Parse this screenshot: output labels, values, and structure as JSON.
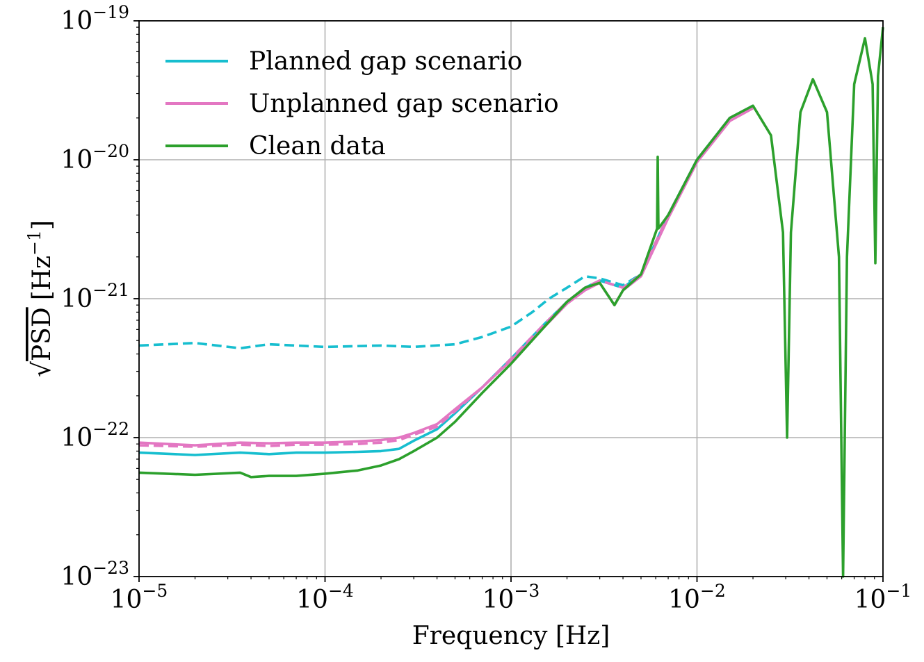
{
  "chart_data": {
    "type": "line",
    "title": "",
    "xlabel": "Frequency [Hz]",
    "ylabel_parts": {
      "radical": "√",
      "overbar_text": "PSD",
      "unit_text": "[Hz",
      "unit_exponent": "−1",
      "unit_close": "]"
    },
    "xscale": "log",
    "yscale": "log",
    "xlim": [
      1e-05,
      0.1
    ],
    "ylim": [
      1e-23,
      1e-19
    ],
    "grid": true,
    "legend_position": "top-left",
    "x_ticks": [
      {
        "value": 1e-05,
        "base": "10",
        "exponent": "−5"
      },
      {
        "value": 0.0001,
        "base": "10",
        "exponent": "−4"
      },
      {
        "value": 0.001,
        "base": "10",
        "exponent": "−3"
      },
      {
        "value": 0.01,
        "base": "10",
        "exponent": "−2"
      },
      {
        "value": 0.1,
        "base": "10",
        "exponent": "−1"
      }
    ],
    "y_ticks": [
      {
        "value": 1e-23,
        "base": "10",
        "exponent": "−23"
      },
      {
        "value": 1e-22,
        "base": "10",
        "exponent": "−22"
      },
      {
        "value": 1e-21,
        "base": "10",
        "exponent": "−21"
      },
      {
        "value": 1e-20,
        "base": "10",
        "exponent": "−20"
      },
      {
        "value": 1e-19,
        "base": "10",
        "exponent": "−19"
      }
    ],
    "legend": [
      {
        "label": "Planned gap scenario",
        "color": "#17becf"
      },
      {
        "label": "Unplanned gap scenario",
        "color": "#e377c2"
      },
      {
        "label": "Clean data",
        "color": "#2ca02c"
      }
    ],
    "series": [
      {
        "name": "Planned gap scenario (dashed)",
        "color": "#17becf",
        "style": "dashed",
        "x": [
          1e-05,
          2e-05,
          3.5e-05,
          5e-05,
          0.0001,
          0.0002,
          0.0003,
          0.0005,
          0.0007,
          0.001,
          0.0013,
          0.0016,
          0.002,
          0.0025,
          0.003,
          0.004,
          0.005,
          0.007,
          0.01,
          0.015,
          0.02
        ],
        "values": [
          4.6e-22,
          4.8e-22,
          4.4e-22,
          4.7e-22,
          4.5e-22,
          4.6e-22,
          4.5e-22,
          4.7e-22,
          5.3e-22,
          6.3e-22,
          8e-22,
          1e-21,
          1.2e-21,
          1.45e-21,
          1.4e-21,
          1.25e-21,
          1.5e-21,
          4e-21,
          1e-20,
          2e-20,
          2.45e-20
        ]
      },
      {
        "name": "Planned gap scenario",
        "color": "#17becf",
        "style": "solid",
        "x": [
          1e-05,
          2e-05,
          3.5e-05,
          5e-05,
          7e-05,
          0.0001,
          0.00015,
          0.0002,
          0.00025,
          0.0003,
          0.0004,
          0.0005,
          0.0007,
          0.001,
          0.0015,
          0.002,
          0.0025,
          0.003,
          0.004,
          0.005,
          0.007,
          0.01,
          0.015,
          0.02
        ],
        "values": [
          7.8e-23,
          7.5e-23,
          7.8e-23,
          7.6e-23,
          7.8e-23,
          7.8e-23,
          7.9e-23,
          8e-23,
          8.3e-23,
          9.5e-23,
          1.15e-22,
          1.5e-22,
          2.3e-22,
          3.7e-22,
          6.5e-22,
          9.5e-22,
          1.2e-21,
          1.35e-21,
          1.2e-21,
          1.5e-21,
          4e-21,
          1e-20,
          2e-20,
          2.45e-20
        ]
      },
      {
        "name": "Unplanned gap scenario (dashed)",
        "color": "#e377c2",
        "style": "dashed",
        "x": [
          1e-05,
          2e-05,
          3.5e-05,
          5e-05,
          7e-05,
          0.0001,
          0.00015,
          0.0002,
          0.00025,
          0.0003,
          0.0004,
          0.0005,
          0.0007,
          0.001,
          0.0015,
          0.002,
          0.0025,
          0.003,
          0.004,
          0.005,
          0.007,
          0.01,
          0.015,
          0.02
        ],
        "values": [
          8.8e-23,
          8.6e-23,
          8.9e-23,
          8.7e-23,
          8.9e-23,
          8.9e-23,
          9e-23,
          9.2e-23,
          9.6e-23,
          1.05e-22,
          1.2e-22,
          1.55e-22,
          2.3e-22,
          3.7e-22,
          6.5e-22,
          9.5e-22,
          1.2e-21,
          1.35e-21,
          1.2e-21,
          1.5e-21,
          4e-21,
          1e-20,
          2e-20,
          2.45e-20
        ]
      },
      {
        "name": "Unplanned gap scenario",
        "color": "#e377c2",
        "style": "solid",
        "x": [
          1e-05,
          2e-05,
          3.5e-05,
          5e-05,
          7e-05,
          0.0001,
          0.00015,
          0.0002,
          0.00025,
          0.0003,
          0.0004,
          0.0005,
          0.0007,
          0.001,
          0.0015,
          0.002,
          0.0025,
          0.003,
          0.0036,
          0.004,
          0.005,
          0.007,
          0.01,
          0.015,
          0.02
        ],
        "values": [
          9.2e-23,
          8.8e-23,
          9.2e-23,
          9.1e-23,
          9.2e-23,
          9.2e-23,
          9.4e-23,
          9.6e-23,
          1e-22,
          1.08e-22,
          1.25e-22,
          1.6e-22,
          2.3e-22,
          3.6e-22,
          6.2e-22,
          9.2e-22,
          1.15e-21,
          1.3e-21,
          9e-22,
          1.15e-21,
          1.45e-21,
          3.8e-21,
          9.6e-21,
          1.9e-20,
          2.35e-20
        ]
      },
      {
        "name": "Clean data",
        "color": "#2ca02c",
        "style": "solid",
        "x": [
          1e-05,
          2e-05,
          3.5e-05,
          4e-05,
          5e-05,
          7e-05,
          0.0001,
          0.00015,
          0.0002,
          0.00025,
          0.0003,
          0.0004,
          0.0005,
          0.0007,
          0.001,
          0.0015,
          0.002,
          0.0025,
          0.003,
          0.0036,
          0.004,
          0.005,
          0.0061,
          0.00615,
          0.0062,
          0.007,
          0.01,
          0.015,
          0.02,
          0.025,
          0.029,
          0.0305,
          0.032,
          0.036,
          0.042,
          0.05,
          0.058,
          0.061,
          0.064,
          0.07,
          0.08,
          0.088,
          0.091,
          0.094,
          0.1
        ],
        "values": [
          5.6e-23,
          5.4e-23,
          5.6e-23,
          5.2e-23,
          5.3e-23,
          5.3e-23,
          5.5e-23,
          5.8e-23,
          6.3e-23,
          7e-23,
          8e-23,
          1e-22,
          1.3e-22,
          2.1e-22,
          3.4e-22,
          6.2e-22,
          9.5e-22,
          1.2e-21,
          1.3e-21,
          9e-22,
          1.15e-21,
          1.5e-21,
          3.2e-21,
          1.05e-20,
          3.2e-21,
          4e-21,
          1e-20,
          2e-20,
          2.45e-20,
          1.5e-20,
          3e-21,
          1e-22,
          3e-21,
          2.2e-20,
          3.8e-20,
          2.2e-20,
          2e-21,
          1e-23,
          2e-21,
          3.5e-20,
          7.5e-20,
          3.5e-20,
          1.8e-21,
          4e-20,
          9e-20
        ]
      }
    ]
  }
}
